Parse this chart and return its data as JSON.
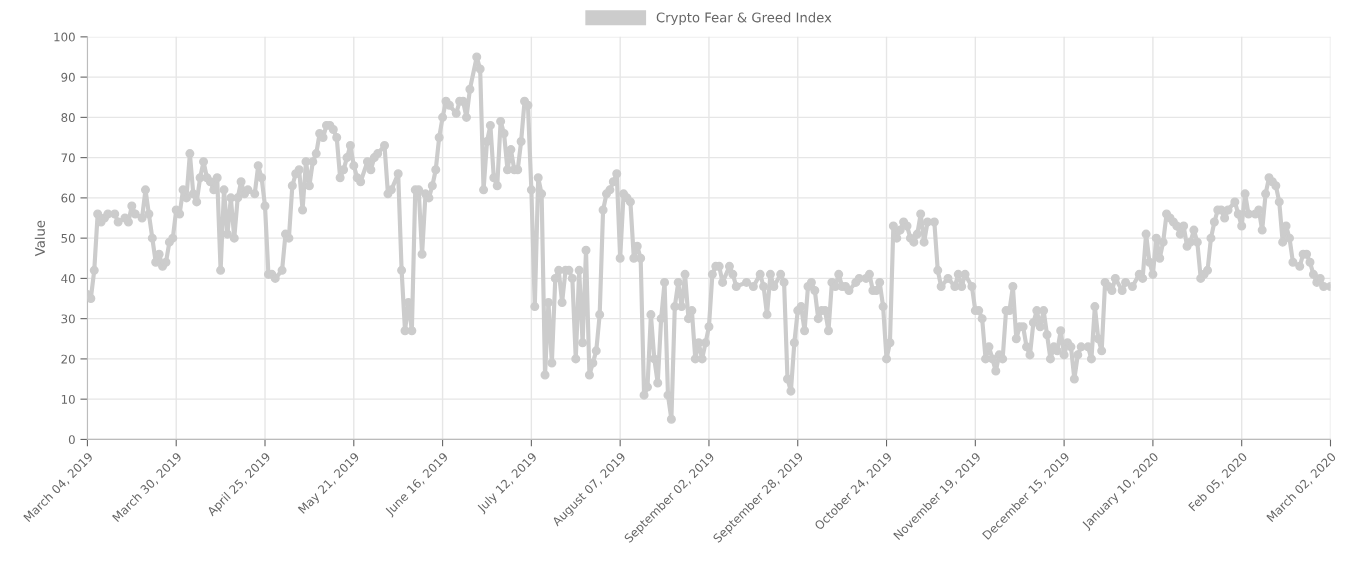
{
  "chart_data": {
    "type": "line",
    "ylabel": "Value",
    "legend": "top",
    "grid": true,
    "marker": "circle",
    "line_style": "solid",
    "xlim": [
      "2019-03-04",
      "2020-03-02"
    ],
    "ylim": [
      0,
      100
    ],
    "yticks": [
      0,
      10,
      20,
      30,
      40,
      50,
      60,
      70,
      80,
      90,
      100
    ],
    "xticks": [
      {
        "value": "2019-03-04",
        "label": "March 04, 2019"
      },
      {
        "value": "2019-03-30",
        "label": "March 30, 2019"
      },
      {
        "value": "2019-04-25",
        "label": "April 25, 2019"
      },
      {
        "value": "2019-05-21",
        "label": "May 21, 2019"
      },
      {
        "value": "2019-06-16",
        "label": "June 16, 2019"
      },
      {
        "value": "2019-07-12",
        "label": "July 12, 2019"
      },
      {
        "value": "2019-08-07",
        "label": "August 07, 2019"
      },
      {
        "value": "2019-09-02",
        "label": "September 02, 2019"
      },
      {
        "value": "2019-09-28",
        "label": "September 28, 2019"
      },
      {
        "value": "2019-10-24",
        "label": "October 24, 2019"
      },
      {
        "value": "2019-11-19",
        "label": "November 19, 2019"
      },
      {
        "value": "2019-12-15",
        "label": "December 15, 2019"
      },
      {
        "value": "2020-01-10",
        "label": "January 10, 2020"
      },
      {
        "value": "2020-02-05",
        "label": "Feb 05, 2020"
      },
      {
        "value": "2020-03-02",
        "label": "March 02, 2020"
      }
    ],
    "series": [
      {
        "name": "Crypto Fear & Greed Index",
        "color": "#cccccc",
        "x": [
          "2019-03-04",
          "2019-03-05",
          "2019-03-06",
          "2019-03-07",
          "2019-03-08",
          "2019-03-09",
          "2019-03-10",
          "2019-03-12",
          "2019-03-13",
          "2019-03-15",
          "2019-03-16",
          "2019-03-17",
          "2019-03-18",
          "2019-03-20",
          "2019-03-21",
          "2019-03-22",
          "2019-03-23",
          "2019-03-24",
          "2019-03-25",
          "2019-03-26",
          "2019-03-27",
          "2019-03-28",
          "2019-03-29",
          "2019-03-30",
          "2019-03-31",
          "2019-04-01",
          "2019-04-02",
          "2019-04-03",
          "2019-04-04",
          "2019-04-05",
          "2019-04-06",
          "2019-04-07",
          "2019-04-08",
          "2019-04-09",
          "2019-04-10",
          "2019-04-11",
          "2019-04-12",
          "2019-04-13",
          "2019-04-14",
          "2019-04-15",
          "2019-04-16",
          "2019-04-17",
          "2019-04-18",
          "2019-04-19",
          "2019-04-20",
          "2019-04-22",
          "2019-04-23",
          "2019-04-24",
          "2019-04-25",
          "2019-04-26",
          "2019-04-27",
          "2019-04-28",
          "2019-04-30",
          "2019-05-01",
          "2019-05-02",
          "2019-05-03",
          "2019-05-04",
          "2019-05-05",
          "2019-05-06",
          "2019-05-07",
          "2019-05-08",
          "2019-05-09",
          "2019-05-10",
          "2019-05-11",
          "2019-05-12",
          "2019-05-13",
          "2019-05-14",
          "2019-05-15",
          "2019-05-16",
          "2019-05-17",
          "2019-05-18",
          "2019-05-19",
          "2019-05-20",
          "2019-05-21",
          "2019-05-22",
          "2019-05-23",
          "2019-05-25",
          "2019-05-26",
          "2019-05-27",
          "2019-05-28",
          "2019-05-30",
          "2019-05-31",
          "2019-06-01",
          "2019-06-03",
          "2019-06-04",
          "2019-06-05",
          "2019-06-06",
          "2019-06-07",
          "2019-06-08",
          "2019-06-09",
          "2019-06-10",
          "2019-06-11",
          "2019-06-12",
          "2019-06-13",
          "2019-06-14",
          "2019-06-15",
          "2019-06-16",
          "2019-06-17",
          "2019-06-18",
          "2019-06-20",
          "2019-06-21",
          "2019-06-22",
          "2019-06-23",
          "2019-06-24",
          "2019-06-26",
          "2019-06-27",
          "2019-06-28",
          "2019-06-29",
          "2019-06-30",
          "2019-07-01",
          "2019-07-02",
          "2019-07-03",
          "2019-07-04",
          "2019-07-05",
          "2019-07-06",
          "2019-07-07",
          "2019-07-08",
          "2019-07-09",
          "2019-07-10",
          "2019-07-11",
          "2019-07-12",
          "2019-07-13",
          "2019-07-14",
          "2019-07-15",
          "2019-07-16",
          "2019-07-17",
          "2019-07-18",
          "2019-07-19",
          "2019-07-20",
          "2019-07-21",
          "2019-07-22",
          "2019-07-23",
          "2019-07-24",
          "2019-07-25",
          "2019-07-26",
          "2019-07-27",
          "2019-07-28",
          "2019-07-29",
          "2019-07-30",
          "2019-07-31",
          "2019-08-01",
          "2019-08-02",
          "2019-08-03",
          "2019-08-04",
          "2019-08-05",
          "2019-08-06",
          "2019-08-07",
          "2019-08-08",
          "2019-08-09",
          "2019-08-10",
          "2019-08-11",
          "2019-08-12",
          "2019-08-13",
          "2019-08-14",
          "2019-08-15",
          "2019-08-16",
          "2019-08-17",
          "2019-08-18",
          "2019-08-19",
          "2019-08-20",
          "2019-08-21",
          "2019-08-22",
          "2019-08-23",
          "2019-08-24",
          "2019-08-25",
          "2019-08-26",
          "2019-08-27",
          "2019-08-28",
          "2019-08-29",
          "2019-08-30",
          "2019-08-31",
          "2019-09-01",
          "2019-09-02",
          "2019-09-03",
          "2019-09-04",
          "2019-09-05",
          "2019-09-06",
          "2019-09-08",
          "2019-09-09",
          "2019-09-10",
          "2019-09-13",
          "2019-09-15",
          "2019-09-17",
          "2019-09-18",
          "2019-09-19",
          "2019-09-20",
          "2019-09-21",
          "2019-09-23",
          "2019-09-24",
          "2019-09-25",
          "2019-09-26",
          "2019-09-27",
          "2019-09-28",
          "2019-09-29",
          "2019-09-30",
          "2019-10-01",
          "2019-10-02",
          "2019-10-03",
          "2019-10-04",
          "2019-10-05",
          "2019-10-06",
          "2019-10-07",
          "2019-10-08",
          "2019-10-09",
          "2019-10-10",
          "2019-10-11",
          "2019-10-12",
          "2019-10-13",
          "2019-10-15",
          "2019-10-16",
          "2019-10-18",
          "2019-10-19",
          "2019-10-20",
          "2019-10-21",
          "2019-10-22",
          "2019-10-23",
          "2019-10-24",
          "2019-10-25",
          "2019-10-26",
          "2019-10-27",
          "2019-10-28",
          "2019-10-29",
          "2019-10-30",
          "2019-10-31",
          "2019-11-01",
          "2019-11-02",
          "2019-11-03",
          "2019-11-04",
          "2019-11-05",
          "2019-11-07",
          "2019-11-08",
          "2019-11-09",
          "2019-11-11",
          "2019-11-13",
          "2019-11-14",
          "2019-11-15",
          "2019-11-16",
          "2019-11-18",
          "2019-11-19",
          "2019-11-20",
          "2019-11-21",
          "2019-11-22",
          "2019-11-23",
          "2019-11-24",
          "2019-11-25",
          "2019-11-26",
          "2019-11-27",
          "2019-11-28",
          "2019-11-29",
          "2019-11-30",
          "2019-12-01",
          "2019-12-02",
          "2019-12-03",
          "2019-12-04",
          "2019-12-05",
          "2019-12-06",
          "2019-12-07",
          "2019-12-08",
          "2019-12-09",
          "2019-12-10",
          "2019-12-11",
          "2019-12-12",
          "2019-12-13",
          "2019-12-14",
          "2019-12-15",
          "2019-12-16",
          "2019-12-17",
          "2019-12-18",
          "2019-12-19",
          "2019-12-20",
          "2019-12-22",
          "2019-12-23",
          "2019-12-24",
          "2019-12-25",
          "2019-12-26",
          "2019-12-27",
          "2019-12-28",
          "2019-12-29",
          "2019-12-30",
          "2020-01-01",
          "2020-01-02",
          "2020-01-04",
          "2020-01-06",
          "2020-01-07",
          "2020-01-08",
          "2020-01-09",
          "2020-01-10",
          "2020-01-11",
          "2020-01-12",
          "2020-01-13",
          "2020-01-14",
          "2020-01-15",
          "2020-01-16",
          "2020-01-17",
          "2020-01-18",
          "2020-01-19",
          "2020-01-20",
          "2020-01-21",
          "2020-01-22",
          "2020-01-23",
          "2020-01-24",
          "2020-01-25",
          "2020-01-26",
          "2020-01-27",
          "2020-01-28",
          "2020-01-29",
          "2020-01-30",
          "2020-01-31",
          "2020-02-01",
          "2020-02-03",
          "2020-02-04",
          "2020-02-05",
          "2020-02-06",
          "2020-02-07",
          "2020-02-09",
          "2020-02-10",
          "2020-02-11",
          "2020-02-12",
          "2020-02-13",
          "2020-02-14",
          "2020-02-15",
          "2020-02-16",
          "2020-02-17",
          "2020-02-18",
          "2020-02-19",
          "2020-02-20",
          "2020-02-22",
          "2020-02-23",
          "2020-02-24",
          "2020-02-25",
          "2020-02-26",
          "2020-02-27",
          "2020-02-28",
          "2020-02-29",
          "2020-03-02"
        ],
        "values": [
          36,
          35,
          42,
          56,
          54,
          55,
          56,
          56,
          54,
          55,
          54,
          58,
          56,
          55,
          62,
          56,
          50,
          44,
          46,
          43,
          44,
          49,
          50,
          57,
          56,
          62,
          60,
          71,
          61,
          59,
          65,
          69,
          65,
          64,
          62,
          65,
          42,
          62,
          51,
          60,
          50,
          60,
          64,
          61,
          62,
          61,
          68,
          65,
          58,
          41,
          41,
          40,
          42,
          51,
          50,
          63,
          66,
          67,
          57,
          69,
          63,
          69,
          71,
          76,
          75,
          78,
          78,
          77,
          75,
          65,
          67,
          70,
          73,
          68,
          65,
          64,
          69,
          67,
          70,
          71,
          73,
          61,
          62,
          66,
          42,
          27,
          34,
          27,
          62,
          62,
          46,
          61,
          60,
          63,
          67,
          75,
          80,
          84,
          83,
          81,
          84,
          84,
          80,
          87,
          95,
          92,
          62,
          74,
          78,
          65,
          63,
          79,
          76,
          67,
          72,
          67,
          67,
          74,
          84,
          83,
          62,
          33,
          65,
          61,
          16,
          34,
          19,
          40,
          42,
          34,
          42,
          42,
          40,
          20,
          42,
          24,
          47,
          16,
          19,
          22,
          31,
          57,
          61,
          62,
          64,
          66,
          45,
          61,
          60,
          59,
          45,
          48,
          45,
          11,
          13,
          31,
          20,
          14,
          30,
          39,
          11,
          5,
          33,
          39,
          33,
          41,
          30,
          32,
          20,
          24,
          20,
          24,
          28,
          41,
          43,
          43,
          39,
          43,
          41,
          38,
          39,
          38,
          41,
          38,
          31,
          41,
          38,
          41,
          39,
          15,
          12,
          24,
          32,
          33,
          27,
          38,
          39,
          37,
          30,
          32,
          32,
          27,
          39,
          38,
          41,
          38,
          38,
          37,
          39,
          40,
          40,
          41,
          37,
          37,
          39,
          33,
          20,
          24,
          53,
          50,
          52,
          54,
          53,
          50,
          49,
          51,
          56,
          49,
          54,
          54,
          42,
          38,
          40,
          38,
          41,
          38,
          41,
          38,
          32,
          32,
          30,
          20,
          23,
          20,
          17,
          21,
          20,
          32,
          32,
          38,
          25,
          28,
          28,
          23,
          21,
          29,
          32,
          28,
          32,
          26,
          20,
          23,
          22,
          27,
          21,
          24,
          23,
          15,
          21,
          23,
          23,
          20,
          33,
          25,
          22,
          39,
          38,
          37,
          40,
          37,
          39,
          38,
          41,
          40,
          51,
          44,
          41,
          50,
          45,
          49,
          56,
          55,
          54,
          53,
          51,
          53,
          48,
          49,
          52,
          49,
          40,
          41,
          42,
          50,
          54,
          57,
          57,
          55,
          57,
          59,
          56,
          53,
          61,
          56,
          56,
          57,
          52,
          61,
          65,
          64,
          63,
          59,
          49,
          53,
          50,
          44,
          43,
          46,
          46,
          44,
          41,
          39,
          40,
          38,
          38
        ]
      }
    ]
  }
}
